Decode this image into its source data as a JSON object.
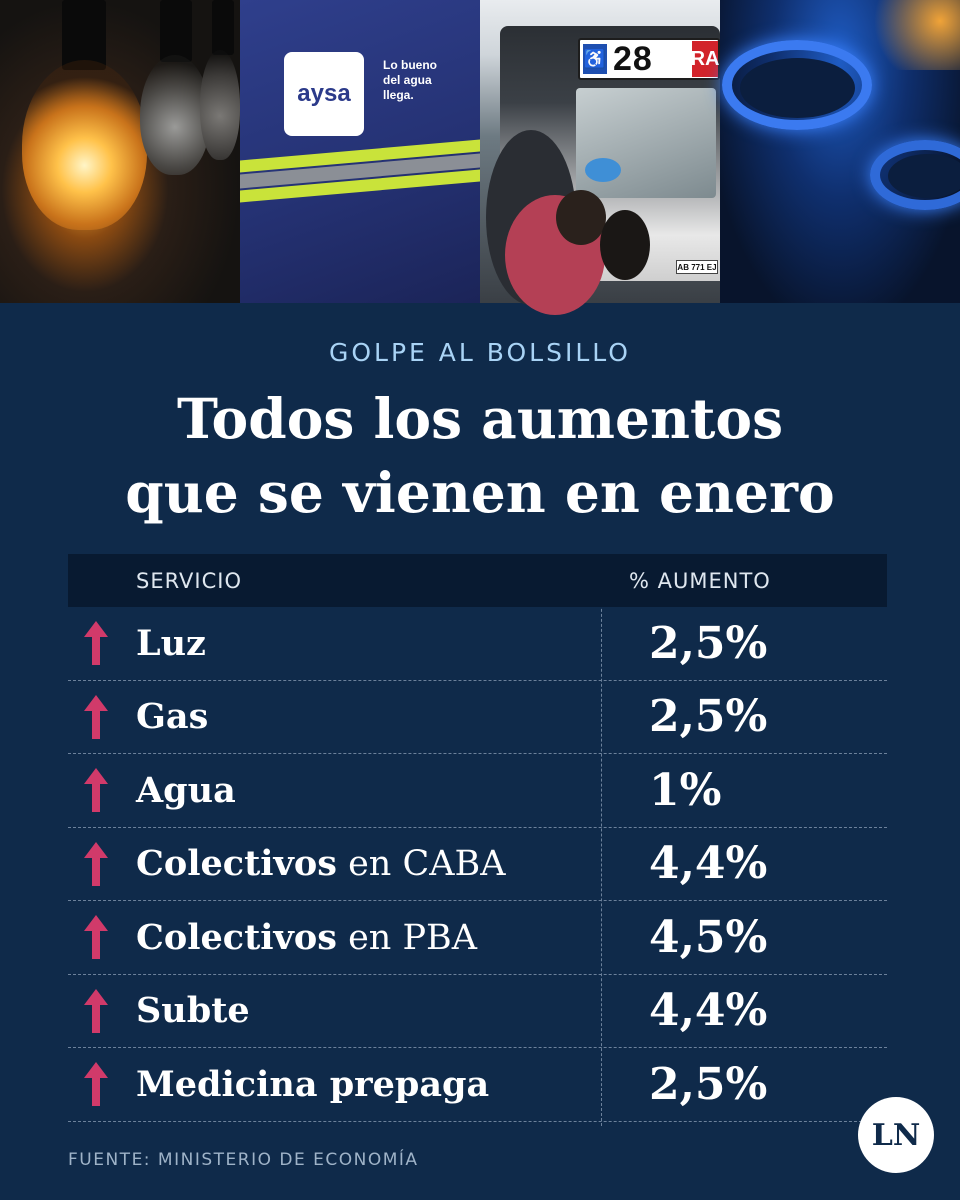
{
  "photos": {
    "aysa_logo": "aysa",
    "aysa_slogan": [
      "Lo bueno",
      "del agua",
      "llega."
    ],
    "bus_number": "28",
    "bus_tag": "RA",
    "bus_plate": "AB 771 EJ"
  },
  "header": {
    "kicker": "GOLPE AL BOLSILLO",
    "title_line1": "Todos los aumentos",
    "title_line2": "que se vienen en enero"
  },
  "table": {
    "col_service": "SERVICIO",
    "col_increase": "% AUMENTO",
    "rows": [
      {
        "service": "Luz",
        "suffix": "",
        "increase": "2,5%"
      },
      {
        "service": "Gas",
        "suffix": "",
        "increase": "2,5%"
      },
      {
        "service": "Agua",
        "suffix": "",
        "increase": "1%"
      },
      {
        "service": "Colectivos",
        "suffix": " en CABA",
        "increase": "4,4%"
      },
      {
        "service": "Colectivos",
        "suffix": " en PBA",
        "increase": "4,5%"
      },
      {
        "service": "Subte",
        "suffix": "",
        "increase": "4,4%"
      },
      {
        "service": "Medicina prepaga",
        "suffix": "",
        "increase": "2,5%"
      }
    ]
  },
  "footer": {
    "source": "FUENTE: MINISTERIO DE ECONOMÍA",
    "logo": "LN"
  },
  "colors": {
    "background": "#0f2a4a",
    "header_bar": "#081a31",
    "kicker": "#a9d3f5",
    "arrow": "#d13a6a"
  }
}
